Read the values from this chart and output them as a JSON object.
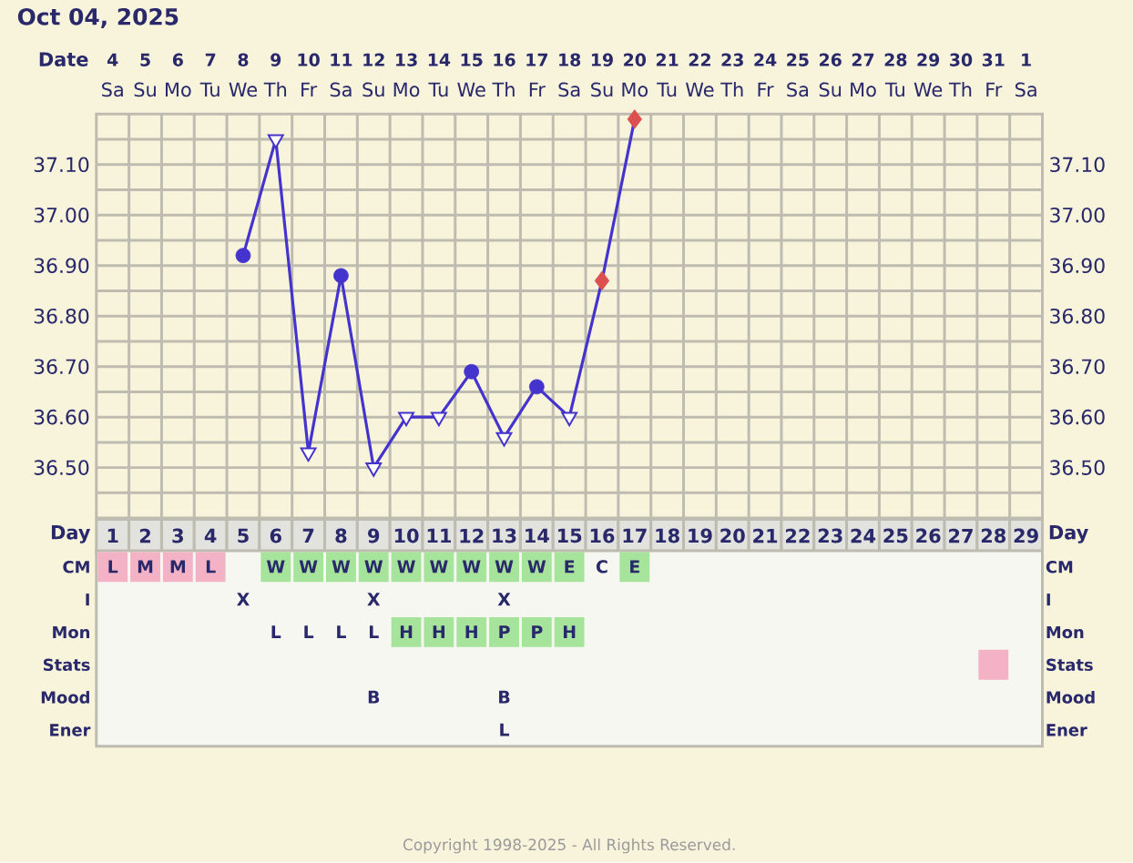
{
  "chart_data": [
    {
      "type": "other",
      "categories": [
        null,
        null,
        null,
        null,
        null,
        null,
        null,
        null,
        null,
        null,
        null,
        null,
        null,
        null,
        null,
        null,
        null,
        null,
        null,
        null,
        null,
        null,
        null,
        null,
        null,
        null,
        null,
        null,
        null
      ],
      "y_categories": [
        null
      ],
      "cell_labels": [
        [
          "Sa",
          "Su",
          "Mo",
          "Tu",
          "We",
          "Th",
          "Fr",
          "Sa",
          "Su",
          "Mo",
          "Tu",
          "We",
          "Th",
          "Fr",
          "Sa",
          "Su",
          "Mo",
          "Tu",
          "We",
          "Th",
          "Fr",
          "Sa",
          "Su",
          "Mo",
          "Tu",
          "We",
          "Th",
          "Fr",
          "Sa"
        ]
      ]
    },
    {
      "type": "line",
      "title": "Oct 04, 2025",
      "xlabel": "Day",
      "x2label": "Date",
      "categories": [
        "1",
        "2",
        "3",
        "4",
        "5",
        "6",
        "7",
        "8",
        "9",
        "10",
        "11",
        "12",
        "13",
        "14",
        "15",
        "16",
        "17",
        "18",
        "19",
        "20",
        "21",
        "22",
        "23",
        "24",
        "25",
        "26",
        "27",
        "28",
        "29"
      ],
      "x2lim": [
        "2025-10-03T12:00",
        "2025-11-01T12:00"
      ],
      "x2ticks": [
        {
          "value": "2025-10-04",
          "label": "4"
        },
        {
          "value": "2025-10-05",
          "label": "5"
        },
        {
          "value": "2025-10-06",
          "label": "6"
        },
        {
          "value": "2025-10-07",
          "label": "7"
        },
        {
          "value": "2025-10-08",
          "label": "8"
        },
        {
          "value": "2025-10-09",
          "label": "9"
        },
        {
          "value": "2025-10-10",
          "label": "10"
        },
        {
          "value": "2025-10-11",
          "label": "11"
        },
        {
          "value": "2025-10-12",
          "label": "12"
        },
        {
          "value": "2025-10-13",
          "label": "13"
        },
        {
          "value": "2025-10-14",
          "label": "14"
        },
        {
          "value": "2025-10-15",
          "label": "15"
        },
        {
          "value": "2025-10-16",
          "label": "16"
        },
        {
          "value": "2025-10-17",
          "label": "17"
        },
        {
          "value": "2025-10-18",
          "label": "18"
        },
        {
          "value": "2025-10-19",
          "label": "19"
        },
        {
          "value": "2025-10-20",
          "label": "20"
        },
        {
          "value": "2025-10-21",
          "label": "21"
        },
        {
          "value": "2025-10-22",
          "label": "22"
        },
        {
          "value": "2025-10-23",
          "label": "23"
        },
        {
          "value": "2025-10-24",
          "label": "24"
        },
        {
          "value": "2025-10-25",
          "label": "25"
        },
        {
          "value": "2025-10-26",
          "label": "26"
        },
        {
          "value": "2025-10-27",
          "label": "27"
        },
        {
          "value": "2025-10-28",
          "label": "28"
        },
        {
          "value": "2025-10-29",
          "label": "29"
        },
        {
          "value": "2025-10-30",
          "label": "30"
        },
        {
          "value": "2025-10-31",
          "label": "31"
        },
        {
          "value": "2025-11-01",
          "label": "1"
        }
      ],
      "ylim": [
        36.4,
        37.2
      ],
      "yticks": [
        {
          "value": 36.45,
          "label": null
        },
        {
          "value": 36.5,
          "label": "36.50"
        },
        {
          "value": 36.55,
          "label": null
        },
        {
          "value": 36.6,
          "label": "36.60"
        },
        {
          "value": 36.65,
          "label": null
        },
        {
          "value": 36.7,
          "label": "36.70"
        },
        {
          "value": 36.75,
          "label": null
        },
        {
          "value": 36.8,
          "label": "36.80"
        },
        {
          "value": 36.85,
          "label": null
        },
        {
          "value": 36.9,
          "label": "36.90"
        },
        {
          "value": 36.95,
          "label": null
        },
        {
          "value": 37.0,
          "label": "37.00"
        },
        {
          "value": 37.05,
          "label": null
        },
        {
          "value": 37.1,
          "label": "37.10"
        },
        {
          "value": 37.15,
          "label": null
        }
      ],
      "y2lim": [
        36.4,
        37.2
      ],
      "y2ticks": [
        {
          "value": 36.45,
          "label": null
        },
        {
          "value": 36.5,
          "label": "36.50"
        },
        {
          "value": 36.55,
          "label": null
        },
        {
          "value": 36.6,
          "label": "36.60"
        },
        {
          "value": 36.65,
          "label": null
        },
        {
          "value": 36.7,
          "label": "36.70"
        },
        {
          "value": 36.75,
          "label": null
        },
        {
          "value": 36.8,
          "label": "36.80"
        },
        {
          "value": 36.85,
          "label": null
        },
        {
          "value": 36.9,
          "label": "36.90"
        },
        {
          "value": 36.95,
          "label": null
        },
        {
          "value": 37.0,
          "label": "37.00"
        },
        {
          "value": 37.05,
          "label": null
        },
        {
          "value": 37.1,
          "label": "37.10"
        },
        {
          "value": 37.15,
          "label": null
        }
      ],
      "grid": true,
      "series": [
        {
          "type": "line",
          "color": "#4433cc",
          "marker": "none",
          "values": [
            null,
            null,
            null,
            null,
            36.92,
            37.15,
            36.53,
            36.88,
            36.5,
            36.6,
            36.6,
            36.69,
            36.56,
            36.66,
            36.6,
            36.87,
            37.19,
            null,
            null,
            null,
            null,
            null,
            null,
            null,
            null,
            null,
            null,
            null,
            null
          ]
        },
        {
          "type": "scatter",
          "color": "#4433cc",
          "marker": "circle",
          "values": [
            null,
            null,
            null,
            null,
            36.92,
            null,
            null,
            36.88,
            null,
            null,
            null,
            36.69,
            null,
            36.66,
            null,
            null,
            null,
            null,
            null,
            null,
            null,
            null,
            null,
            null,
            null,
            null,
            null,
            null,
            null
          ]
        },
        {
          "type": "scatter",
          "color": "#4433cc",
          "marker": "triangle",
          "values": [
            null,
            null,
            null,
            null,
            null,
            37.15,
            36.53,
            null,
            36.5,
            36.6,
            36.6,
            null,
            36.56,
            null,
            36.6,
            null,
            null,
            null,
            null,
            null,
            null,
            null,
            null,
            null,
            null,
            null,
            null,
            null,
            null
          ]
        },
        {
          "type": "scatter",
          "color": "#dd5050",
          "marker": "diamond",
          "values": [
            null,
            null,
            null,
            null,
            null,
            null,
            null,
            null,
            null,
            null,
            null,
            null,
            null,
            null,
            null,
            36.87,
            37.19,
            null,
            null,
            null,
            null,
            null,
            null,
            null,
            null,
            null,
            null,
            null,
            null
          ]
        }
      ],
      "annotations": [
        "Copyright 1998-2025 - All Rights Reserved."
      ]
    },
    {
      "type": "other",
      "categories": [
        null,
        null,
        null,
        null,
        null,
        null,
        null,
        null,
        null,
        null,
        null,
        null,
        null,
        null,
        null,
        null,
        null,
        null,
        null,
        null,
        null,
        null,
        null,
        null,
        null,
        null,
        null,
        null,
        null
      ],
      "y_categories": [
        "CM",
        "I",
        "Mon",
        "Stats",
        "Mood",
        "Ener"
      ],
      "y2_categories": [
        "CM",
        "I",
        "Mon",
        "Stats",
        "Mood",
        "Ener"
      ],
      "cell_labels": [
        [
          "L",
          "M",
          "M",
          "L",
          null,
          "W",
          "W",
          "W",
          "W",
          "W",
          "W",
          "W",
          "W",
          "W",
          "E",
          "C",
          "E",
          null,
          null,
          null,
          null,
          null,
          null,
          null,
          null,
          null,
          null,
          null,
          null
        ],
        [
          null,
          null,
          null,
          null,
          "X",
          null,
          null,
          null,
          "X",
          null,
          null,
          null,
          "X",
          null,
          null,
          null,
          null,
          null,
          null,
          null,
          null,
          null,
          null,
          null,
          null,
          null,
          null,
          null,
          null
        ],
        [
          null,
          null,
          null,
          null,
          null,
          "L",
          "L",
          "L",
          "L",
          "H",
          "H",
          "H",
          "P",
          "P",
          "H",
          null,
          null,
          null,
          null,
          null,
          null,
          null,
          null,
          null,
          null,
          null,
          null,
          null,
          null
        ],
        [
          null,
          null,
          null,
          null,
          null,
          null,
          null,
          null,
          null,
          null,
          null,
          null,
          null,
          null,
          null,
          null,
          null,
          null,
          null,
          null,
          null,
          null,
          null,
          null,
          null,
          null,
          null,
          null,
          null
        ],
        [
          null,
          null,
          null,
          null,
          null,
          null,
          null,
          null,
          "B",
          null,
          null,
          null,
          "B",
          null,
          null,
          null,
          null,
          null,
          null,
          null,
          null,
          null,
          null,
          null,
          null,
          null,
          null,
          null,
          null
        ],
        [
          null,
          null,
          null,
          null,
          null,
          null,
          null,
          null,
          null,
          null,
          null,
          null,
          "L",
          null,
          null,
          null,
          null,
          null,
          null,
          null,
          null,
          null,
          null,
          null,
          null,
          null,
          null,
          null,
          null
        ]
      ],
      "colors": [
        [
          "#f3b2c6",
          "#f3b2c6",
          "#f3b2c6",
          "#f3b2c6",
          null,
          "#a6e39b",
          "#a6e39b",
          "#a6e39b",
          "#a6e39b",
          "#a6e39b",
          "#a6e39b",
          "#a6e39b",
          "#a6e39b",
          "#a6e39b",
          "#a6e39b",
          null,
          "#a6e39b",
          null,
          null,
          null,
          null,
          null,
          null,
          null,
          null,
          null,
          null,
          null,
          null
        ],
        [
          null,
          null,
          null,
          null,
          null,
          null,
          null,
          null,
          null,
          null,
          null,
          null,
          null,
          null,
          null,
          null,
          null,
          null,
          null,
          null,
          null,
          null,
          null,
          null,
          null,
          null,
          null,
          null,
          null
        ],
        [
          null,
          null,
          null,
          null,
          null,
          null,
          null,
          null,
          null,
          "#a6e39b",
          "#a6e39b",
          "#a6e39b",
          "#a6e39b",
          "#a6e39b",
          "#a6e39b",
          null,
          null,
          null,
          null,
          null,
          null,
          null,
          null,
          null,
          null,
          null,
          null,
          null,
          null
        ],
        [
          null,
          null,
          null,
          null,
          null,
          null,
          null,
          null,
          null,
          null,
          null,
          null,
          null,
          null,
          null,
          null,
          null,
          null,
          null,
          null,
          null,
          null,
          null,
          null,
          null,
          null,
          null,
          "#f3b2c6",
          null
        ],
        [
          null,
          null,
          null,
          null,
          null,
          null,
          null,
          null,
          null,
          null,
          null,
          null,
          null,
          null,
          null,
          null,
          null,
          null,
          null,
          null,
          null,
          null,
          null,
          null,
          null,
          null,
          null,
          null,
          null
        ],
        [
          null,
          null,
          null,
          null,
          null,
          null,
          null,
          null,
          null,
          null,
          null,
          null,
          null,
          null,
          null,
          null,
          null,
          null,
          null,
          null,
          null,
          null,
          null,
          null,
          null,
          null,
          null,
          null,
          null
        ]
      ]
    }
  ]
}
